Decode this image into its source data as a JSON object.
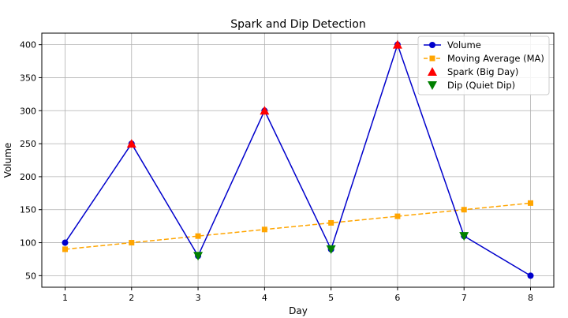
{
  "chart_data": {
    "type": "line",
    "title": "Spark and Dip Detection",
    "xlabel": "Day",
    "ylabel": "Volume",
    "xlim": [
      0.65,
      8.35
    ],
    "ylim": [
      32.5,
      417.5
    ],
    "x": [
      1,
      2,
      3,
      4,
      5,
      6,
      7,
      8
    ],
    "xticks": [
      1,
      2,
      3,
      4,
      5,
      6,
      7,
      8
    ],
    "yticks": [
      50,
      100,
      150,
      200,
      250,
      300,
      350,
      400
    ],
    "grid": true,
    "legend_position": "top-right",
    "series": [
      {
        "name": "Volume",
        "values": [
          100,
          250,
          80,
          300,
          90,
          400,
          110,
          50
        ],
        "color": "#0000cc",
        "marker": "circle",
        "line": "solid"
      },
      {
        "name": "Moving Average (MA)",
        "values": [
          90,
          100,
          110,
          120,
          130,
          140,
          150,
          160
        ],
        "color": "#ffa500",
        "marker": "square",
        "line": "dashed"
      }
    ],
    "markers": [
      {
        "name": "Spark (Big Day)",
        "color": "#ff0000",
        "shape": "triangle-up",
        "points": [
          [
            2,
            250
          ],
          [
            4,
            300
          ],
          [
            6,
            400
          ]
        ]
      },
      {
        "name": "Dip (Quiet Dip)",
        "color": "#008000",
        "shape": "triangle-down",
        "points": [
          [
            3,
            80
          ],
          [
            5,
            90
          ],
          [
            7,
            110
          ]
        ]
      }
    ]
  }
}
